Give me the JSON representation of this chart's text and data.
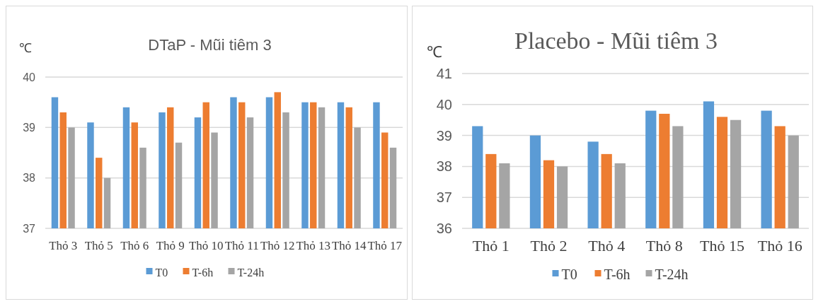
{
  "chart_data": [
    {
      "type": "bar",
      "title": "DTaP - Mũi tiêm 3",
      "ylabel": "℃",
      "categories": [
        "Thỏ 3",
        "Thỏ 5",
        "Thỏ 6",
        "Thỏ 9",
        "Thỏ 10",
        "Thỏ 11",
        "Thỏ 12",
        "Thỏ 13",
        "Thỏ 14",
        "Thỏ 17"
      ],
      "ylim": [
        37,
        40
      ],
      "yticks": [
        37,
        38,
        39,
        40
      ],
      "grid": "y",
      "legend": "bottom",
      "series": [
        {
          "name": "T0",
          "color": "#5b9bd5",
          "values": [
            39.6,
            39.1,
            39.4,
            39.3,
            39.2,
            39.6,
            39.6,
            39.5,
            39.5,
            39.5
          ]
        },
        {
          "name": "T-6h",
          "color": "#ed7d31",
          "values": [
            39.3,
            38.4,
            39.1,
            39.4,
            39.5,
            39.5,
            39.7,
            39.5,
            39.4,
            38.9
          ]
        },
        {
          "name": "T-24h",
          "color": "#a5a5a5",
          "values": [
            39.0,
            38.0,
            38.6,
            38.7,
            38.9,
            39.2,
            39.3,
            39.4,
            39.0,
            38.6
          ]
        }
      ]
    },
    {
      "type": "bar",
      "title": "Placebo - Mũi tiêm 3",
      "ylabel": "℃",
      "categories": [
        "Thỏ 1",
        "Thỏ 2",
        "Thỏ 4",
        "Thỏ 8",
        "Thỏ 15",
        "Thỏ 16"
      ],
      "ylim": [
        36,
        41
      ],
      "yticks": [
        36,
        37,
        38,
        39,
        40,
        41
      ],
      "grid": "y",
      "legend": "bottom",
      "series": [
        {
          "name": "T0",
          "color": "#5b9bd5",
          "values": [
            39.3,
            39.0,
            38.8,
            39.8,
            40.1,
            39.8
          ]
        },
        {
          "name": "T-6h",
          "color": "#ed7d31",
          "values": [
            38.4,
            38.2,
            38.4,
            39.7,
            39.6,
            39.3
          ]
        },
        {
          "name": "T-24h",
          "color": "#a5a5a5",
          "values": [
            38.1,
            38.0,
            38.1,
            39.3,
            39.5,
            39.0
          ]
        }
      ]
    }
  ]
}
